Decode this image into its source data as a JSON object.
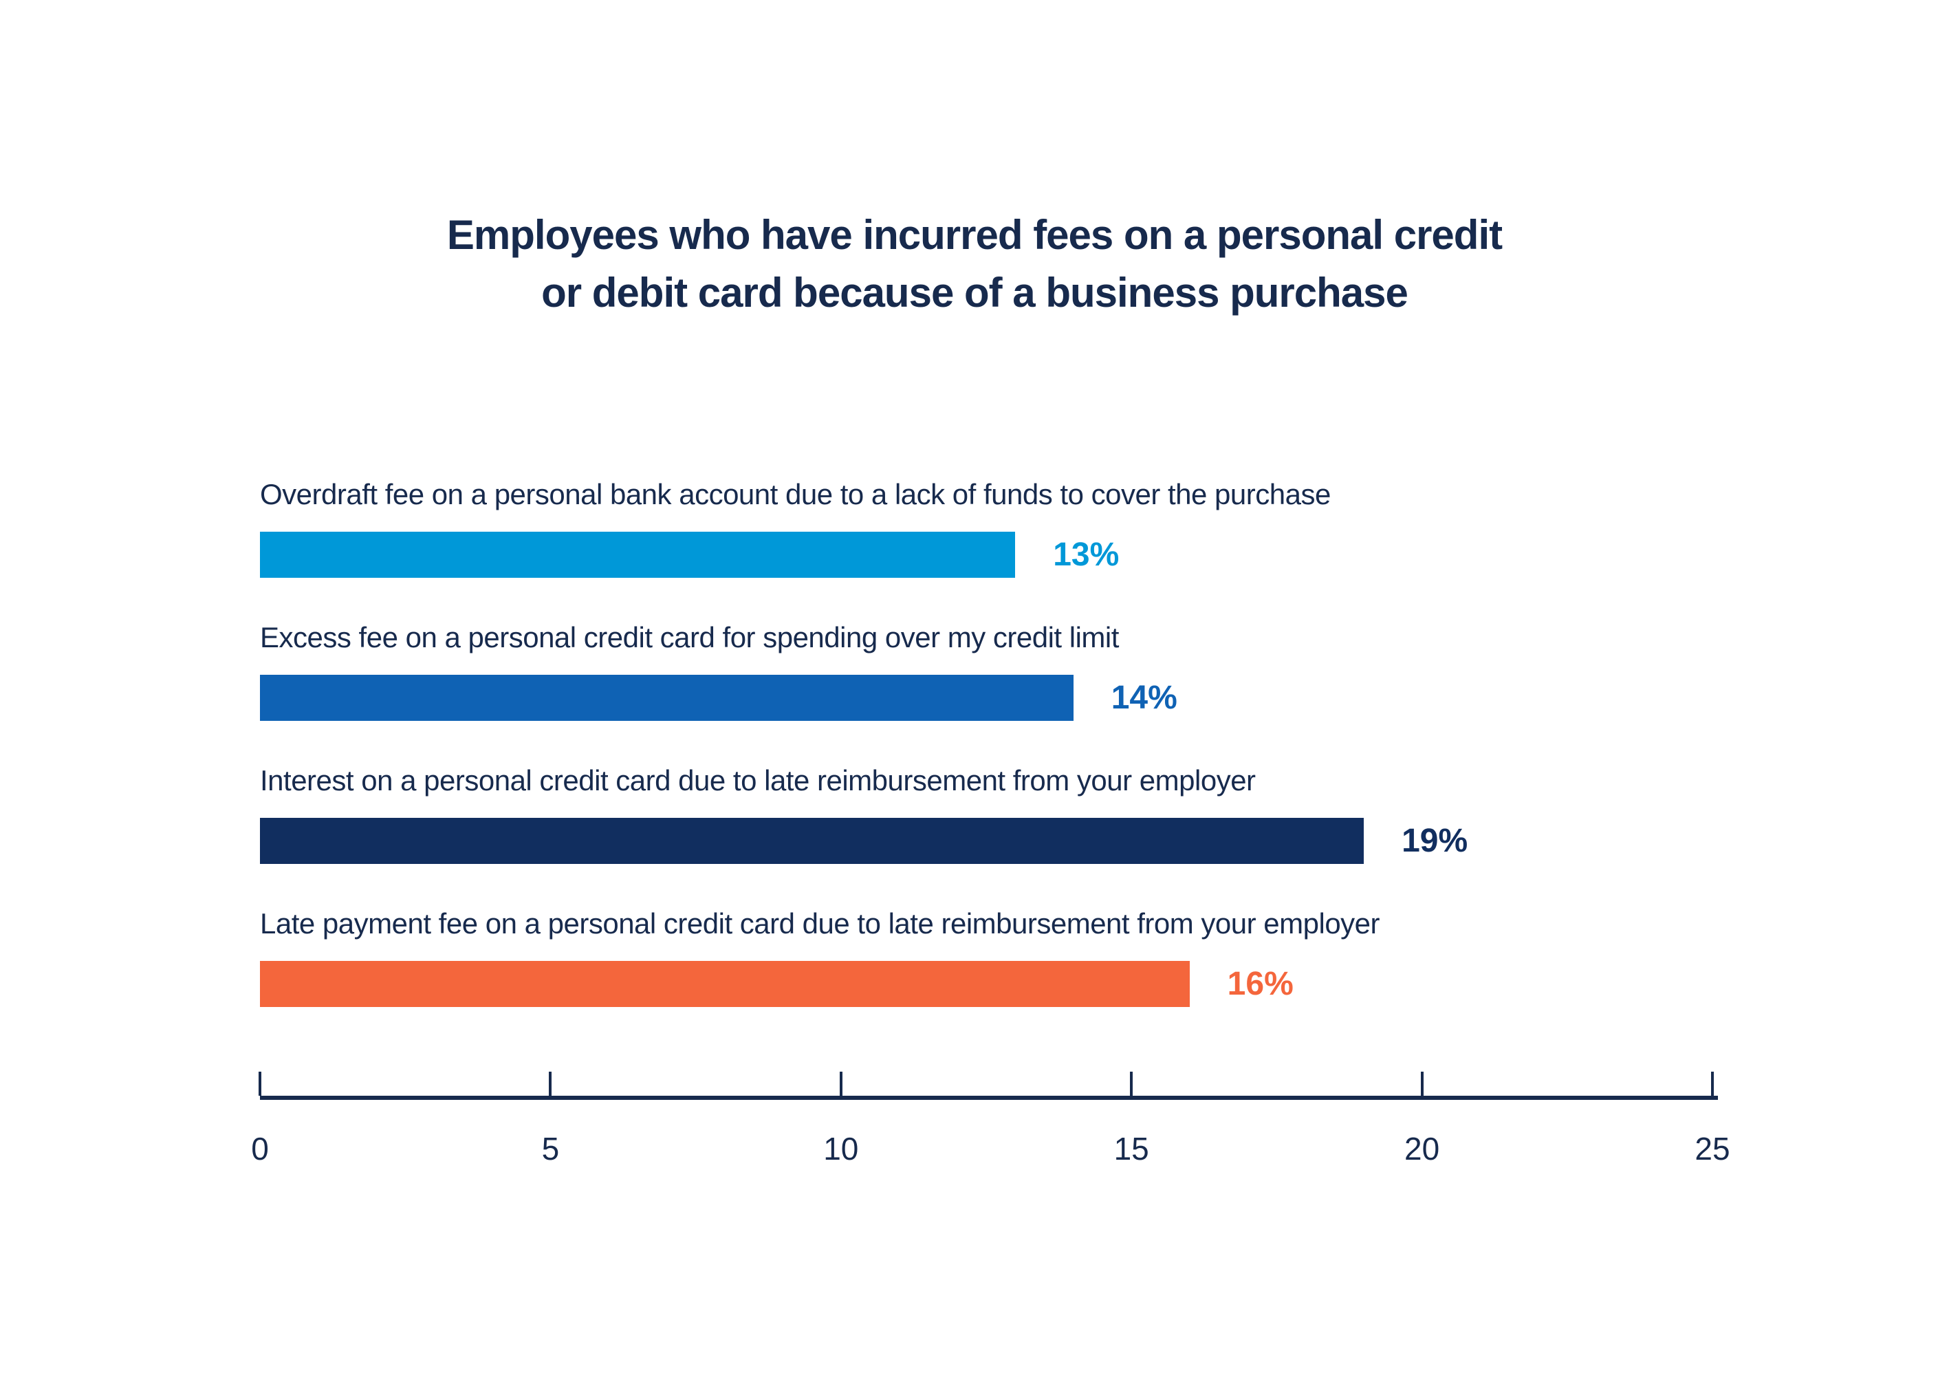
{
  "title": {
    "line1": "Employees who have incurred fees on a personal credit",
    "line2": "or debit card because of a business purchase"
  },
  "colors": {
    "text_navy": "#172a4d",
    "axis": "#172a4d",
    "background": "#ffffff"
  },
  "chart_data": {
    "type": "bar",
    "orientation": "horizontal",
    "title": "Employees who have incurred fees on a personal credit or debit card because of a business purchase",
    "categories": [
      "Overdraft fee on a personal bank account due to a lack of funds to cover the purchase",
      "Excess fee on a personal credit card for spending over my credit limit",
      "Interest on a personal credit card due to late reimbursement from your employer",
      "Late payment fee on a personal credit card due to late reimbursement from your employer"
    ],
    "values": [
      13,
      14,
      19,
      16
    ],
    "value_labels": [
      "13%",
      "14%",
      "19%",
      "16%"
    ],
    "bar_colors": [
      "#0098d8",
      "#0f62b4",
      "#112e5f",
      "#f4663c"
    ],
    "xlabel": "",
    "ylabel": "",
    "xlim": [
      0,
      25
    ],
    "x_ticks": [
      0,
      5,
      10,
      15,
      20,
      25
    ],
    "grid": false,
    "legend": false
  }
}
